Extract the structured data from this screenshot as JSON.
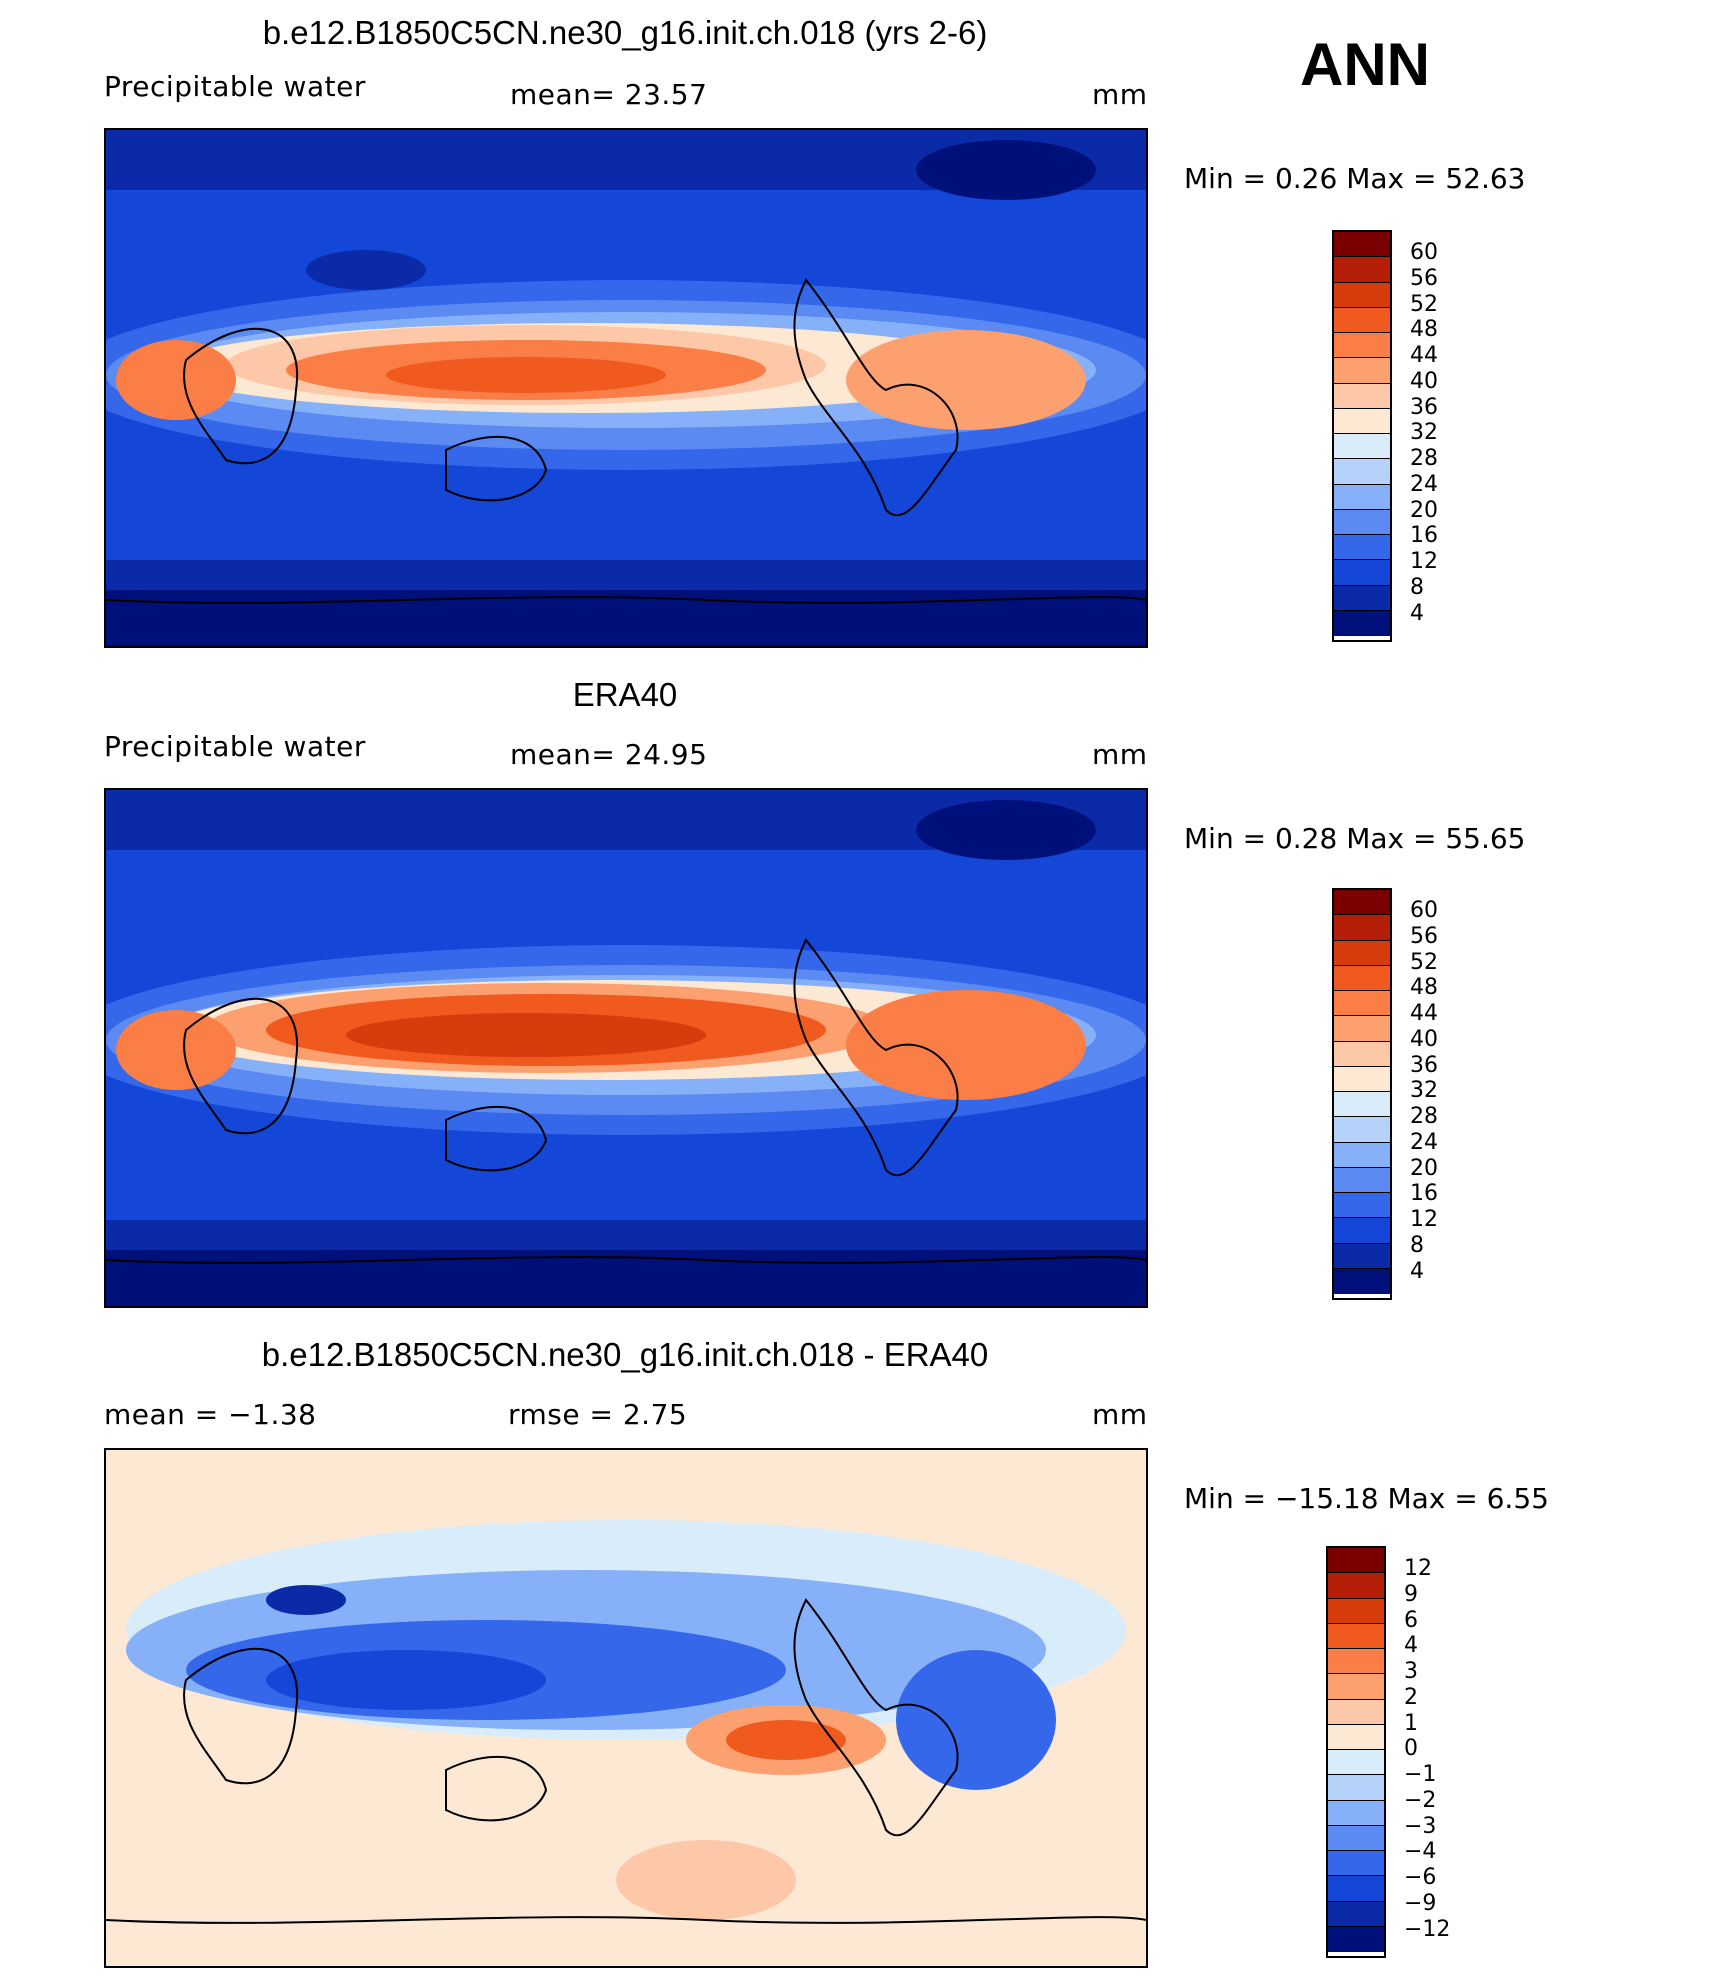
{
  "header": {
    "season": "ANN"
  },
  "panels": [
    {
      "title": "b.e12.B1850C5CN.ne30_g16.init.ch.018 (yrs 2-6)",
      "variable": "Precipitable  water",
      "mean_text": "mean=   23.57",
      "rmse_text": "",
      "units": "mm",
      "minmax": "Min  =      0.26  Max  =    52.63",
      "kind": "abs"
    },
    {
      "title": "ERA40",
      "variable": "Precipitable  water",
      "mean_text": "mean=   24.95",
      "rmse_text": "",
      "units": "mm",
      "minmax": "Min  =      0.28  Max  =    55.65",
      "kind": "abs"
    },
    {
      "title": "b.e12.B1850C5CN.ne30_g16.init.ch.018 - ERA40",
      "variable": "mean  =    −1.38",
      "mean_text": "",
      "rmse_text": "rmse  =      2.75",
      "units": "mm",
      "minmax": "Min  =  −15.18  Max  =      6.55",
      "kind": "diff"
    }
  ],
  "colorbars": {
    "abs": {
      "labels": [
        "60",
        "56",
        "52",
        "48",
        "44",
        "40",
        "36",
        "32",
        "28",
        "24",
        "20",
        "16",
        "12",
        "8",
        "4"
      ],
      "colors": [
        "#7a0000",
        "#b51e06",
        "#d63c0c",
        "#f05a1e",
        "#fa7e46",
        "#fca070",
        "#fcc8a8",
        "#fde8d4",
        "#d8ecfa",
        "#b4d2fa",
        "#86b0f8",
        "#5a8af2",
        "#3467ea",
        "#1446d8",
        "#0a2aa8",
        "#00107a"
      ]
    },
    "diff": {
      "labels": [
        "12",
        "9",
        "6",
        "4",
        "3",
        "2",
        "1",
        "0",
        "−1",
        "−2",
        "−3",
        "−4",
        "−6",
        "−9",
        "−12"
      ],
      "colors": [
        "#7a0000",
        "#b51e06",
        "#d63c0c",
        "#f05a1e",
        "#fa7e46",
        "#fca070",
        "#fcc8a8",
        "#fde8d4",
        "#d8ecfa",
        "#b4d2fa",
        "#86b0f8",
        "#5a8af2",
        "#3467ea",
        "#1446d8",
        "#0a2aa8",
        "#00107a"
      ]
    }
  }
}
